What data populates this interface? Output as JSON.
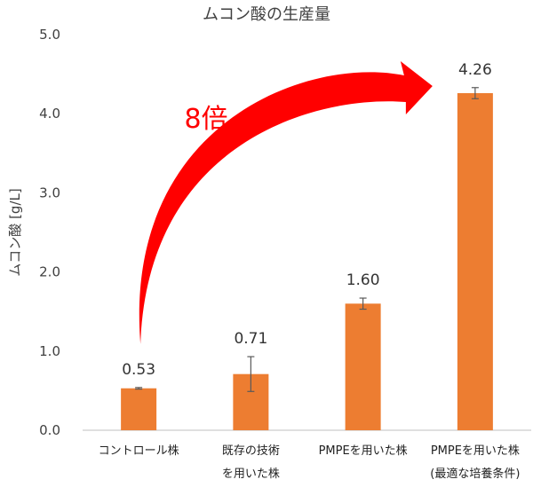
{
  "chart_data": {
    "type": "bar",
    "title": "ムコン酸の生産量",
    "ylabel": "ムコン酸 [g/L]",
    "xlabel": "",
    "ylim": [
      0,
      5
    ],
    "yticks": [
      "0.0",
      "1.0",
      "2.0",
      "3.0",
      "4.0",
      "5.0"
    ],
    "grid": false,
    "categories": [
      [
        "コントロール株"
      ],
      [
        "既存の技術",
        "を用いた株"
      ],
      [
        "PMPEを用いた株"
      ],
      [
        "PMPEを用いた株",
        "(最適な培養条件)"
      ]
    ],
    "values": [
      0.53,
      0.71,
      1.6,
      4.26
    ],
    "errors": [
      0.01,
      0.22,
      0.07,
      0.07
    ],
    "data_labels": [
      "0.53",
      "0.71",
      "1.60",
      "4.26"
    ],
    "bar_color": "#ed7d31",
    "annotation": {
      "text": "8倍",
      "color": "#ff0000"
    }
  }
}
